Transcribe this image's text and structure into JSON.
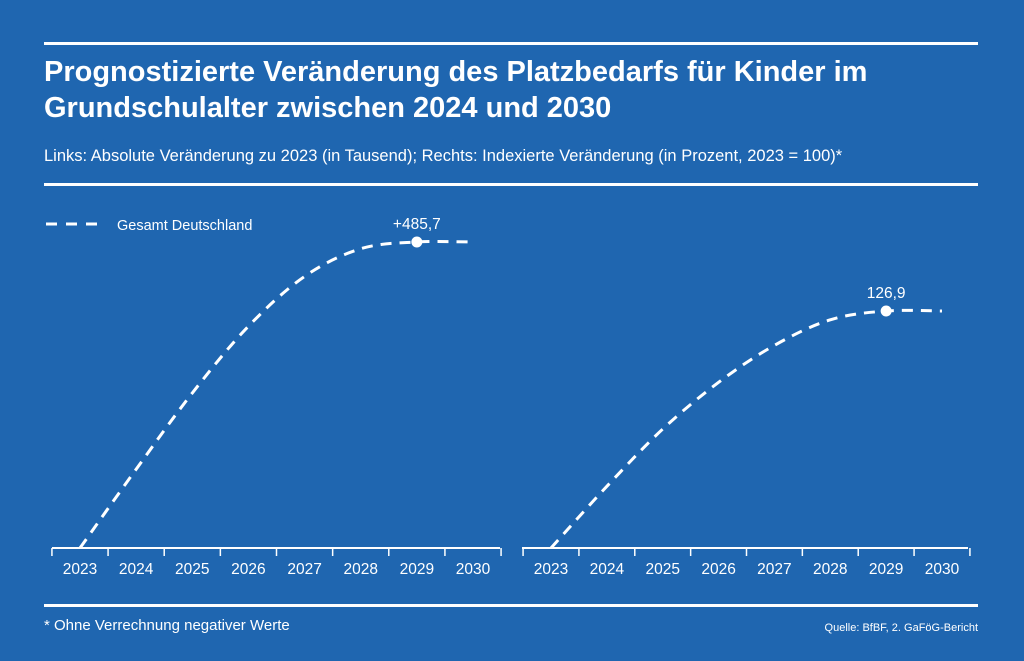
{
  "header": {
    "title": "Prognostizierte Veränderung des Platzbedarfs für Kinder im Grundschulalter zwischen 2024 und 2030",
    "subtitle": "Links: Absolute Veränderung zu 2023 (in Tausend); Rechts: Indexierte Veränderung (in Prozent, 2023 = 100)*"
  },
  "footer": {
    "footnote": "* Ohne Verrechnung negativer Werte",
    "source": "Quelle: BfBF, 2. GaFöG-Bericht"
  },
  "colors": {
    "background": "#1f66b0",
    "foreground": "#ffffff"
  },
  "chart_data": [
    {
      "type": "line",
      "x": [
        "2023",
        "2024",
        "2025",
        "2026",
        "2027",
        "2028",
        "2029",
        "2030"
      ],
      "series": [
        {
          "name": "Gesamt Deutschland",
          "values": [
            0,
            125,
            246,
            352,
            431,
            475,
            485.7,
            485.7
          ],
          "style": "dashed"
        }
      ],
      "highlight": {
        "x": "2029",
        "value": 485.7,
        "label": "+485,7"
      },
      "legend": "top-left",
      "grid": false
    },
    {
      "type": "line",
      "x": [
        "2023",
        "2024",
        "2025",
        "2026",
        "2027",
        "2028",
        "2029",
        "2030"
      ],
      "series": [
        {
          "name": "Gesamt Deutschland",
          "values": [
            100,
            107,
            113.5,
            118.8,
            123,
            125.9,
            126.9,
            126.9
          ],
          "style": "dashed"
        }
      ],
      "highlight": {
        "x": "2029",
        "value": 126.9,
        "label": "126,9"
      },
      "grid": false
    }
  ]
}
